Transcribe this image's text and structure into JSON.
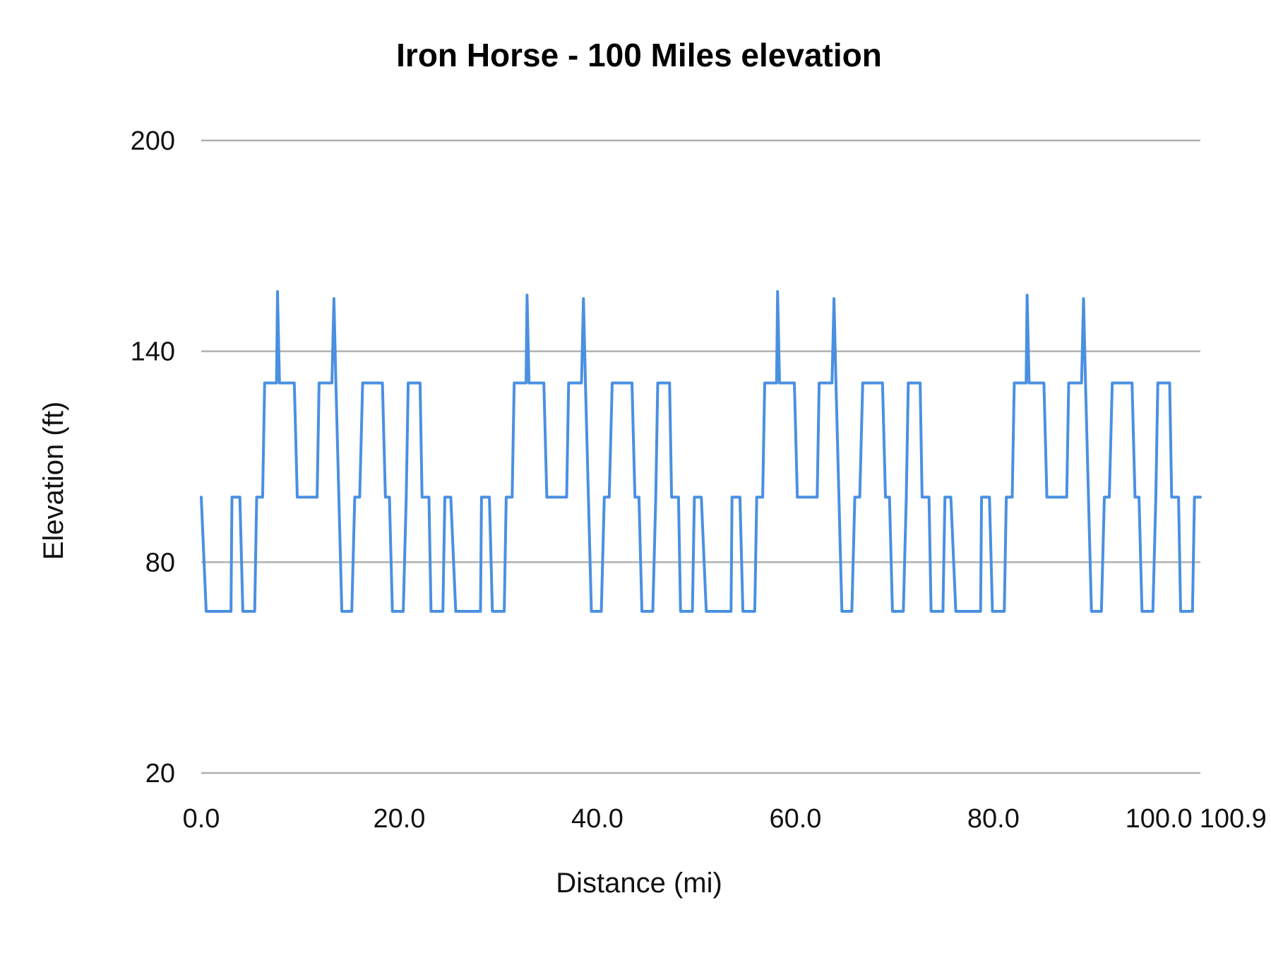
{
  "chart_data": {
    "type": "line",
    "title": "Iron Horse - 100 Miles elevation",
    "xlabel": "Distance (mi)",
    "ylabel": "Elevation (ft)",
    "xlim": [
      0,
      100.9
    ],
    "ylim": [
      20,
      200
    ],
    "x_ticks": [
      "0.0",
      "20.0",
      "40.0",
      "60.0",
      "80.0",
      "100.0",
      "100.9"
    ],
    "x_tick_values": [
      0,
      20,
      40,
      60,
      80,
      100,
      100.9
    ],
    "y_ticks": [
      "20",
      "80",
      "140",
      "200"
    ],
    "y_tick_values": [
      20,
      80,
      140,
      200
    ],
    "grid": "horizontal",
    "legend": "none",
    "line_color": "#4a90e2",
    "series": [
      {
        "x": [
          0,
          0.5,
          3.0,
          3.1,
          3.9,
          4.2,
          5.4,
          5.6,
          6.2,
          6.4,
          7.6,
          7.7,
          7.9,
          9.4,
          9.7,
          11.7,
          11.9,
          13.2,
          13.4,
          13.6,
          13.9,
          14.2,
          15.2,
          15.5,
          16.0,
          16.3,
          18.3,
          18.6,
          19.0,
          19.3,
          20.4,
          20.7,
          20.9,
          22.1,
          22.3,
          23.0,
          23.2,
          24.4,
          24.6,
          25.2,
          25.7,
          28.2,
          28.3,
          29.1,
          29.4,
          30.6,
          30.8,
          31.4,
          31.6,
          32.8,
          32.9,
          33.1,
          34.6,
          34.9,
          36.9,
          37.1,
          38.4,
          38.6,
          38.8,
          39.1,
          39.4,
          40.4,
          40.7,
          41.2,
          41.5,
          43.5,
          43.8,
          44.2,
          44.5,
          45.6,
          45.9,
          46.1,
          47.3,
          47.5,
          48.2,
          48.4,
          49.6,
          49.8,
          50.5,
          51.0,
          53.5,
          53.6,
          54.4,
          54.7,
          55.9,
          56.1,
          56.7,
          56.9,
          58.1,
          58.2,
          58.4,
          59.9,
          60.2,
          62.2,
          62.4,
          63.7,
          63.9,
          64.1,
          64.4,
          64.7,
          65.7,
          66.0,
          66.5,
          66.8,
          68.8,
          69.1,
          69.5,
          69.8,
          70.9,
          71.2,
          71.4,
          72.6,
          72.8,
          73.5,
          73.7,
          74.9,
          75.1,
          75.7,
          76.2,
          78.7,
          78.8,
          79.6,
          79.9,
          81.1,
          81.3,
          81.9,
          82.1,
          83.3,
          83.4,
          83.6,
          85.1,
          85.4,
          87.4,
          87.6,
          88.9,
          89.1,
          89.3,
          89.6,
          89.9,
          90.9,
          91.2,
          91.7,
          92.0,
          94.0,
          94.3,
          94.7,
          95.0,
          96.1,
          96.4,
          96.6,
          97.8,
          98.0,
          98.7,
          98.9,
          100.1,
          100.3,
          100.9
        ],
        "y": [
          98.5,
          66,
          66,
          98.5,
          98.5,
          66,
          66,
          98.5,
          98.5,
          131,
          131,
          157,
          131,
          131,
          98.5,
          98.5,
          131,
          131,
          155,
          131,
          98.5,
          66,
          66,
          98.5,
          98.5,
          131,
          131,
          98.5,
          98.5,
          66,
          66,
          98.5,
          131,
          131,
          98.5,
          98.5,
          66,
          66,
          98.5,
          98.5,
          66,
          66,
          98.5,
          98.5,
          66,
          66,
          98.5,
          98.5,
          131,
          131,
          156,
          131,
          131,
          98.5,
          98.5,
          131,
          131,
          155,
          131,
          98.5,
          66,
          66,
          98.5,
          98.5,
          131,
          131,
          98.5,
          98.5,
          66,
          66,
          98.5,
          131,
          131,
          98.5,
          98.5,
          66,
          66,
          98.5,
          98.5,
          66,
          66,
          98.5,
          98.5,
          66,
          66,
          98.5,
          98.5,
          131,
          131,
          157,
          131,
          131,
          98.5,
          98.5,
          131,
          131,
          155,
          131,
          98.5,
          66,
          66,
          98.5,
          98.5,
          131,
          131,
          98.5,
          98.5,
          66,
          66,
          98.5,
          131,
          131,
          98.5,
          98.5,
          66,
          66,
          98.5,
          98.5,
          66,
          66,
          98.5,
          98.5,
          66,
          66,
          98.5,
          98.5,
          131,
          131,
          156,
          131,
          131,
          98.5,
          98.5,
          131,
          131,
          155,
          131,
          98.5,
          66,
          66,
          98.5,
          98.5,
          131,
          131,
          98.5,
          98.5,
          66,
          66,
          98.5,
          131,
          131,
          98.5,
          98.5,
          66,
          66,
          98.5,
          98.5
        ]
      }
    ]
  }
}
